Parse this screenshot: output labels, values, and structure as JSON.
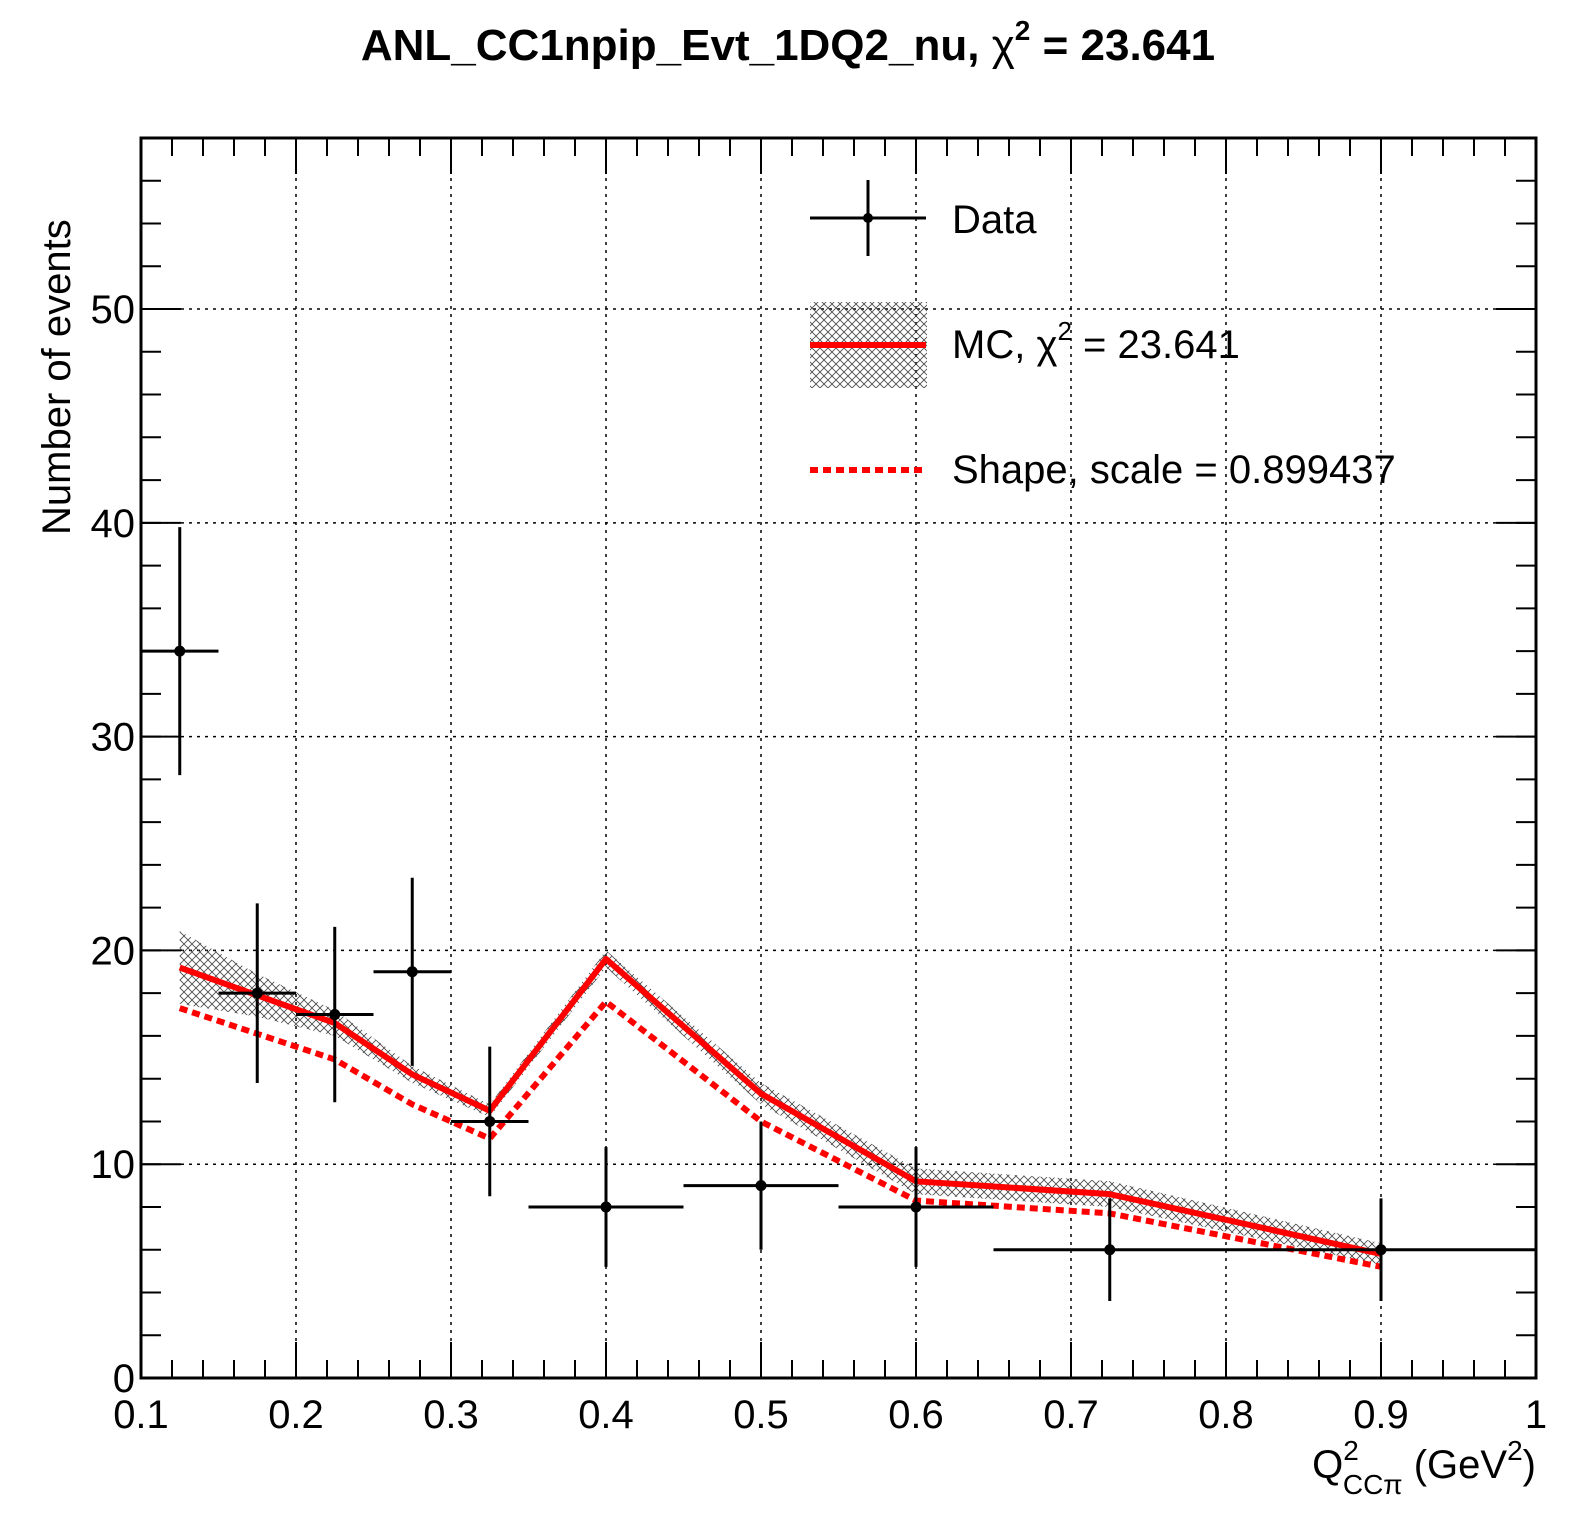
{
  "chart_data": {
    "type": "line",
    "title": {
      "main": "ANL_CC1npip_Evt_1DQ2_nu, ",
      "chi": "χ",
      "sup": "2",
      "rest": " = 23.641"
    },
    "xlabel": {
      "q": "Q",
      "sup": "2",
      "sub": "CCπ",
      "unit": " (GeV",
      "unit_sup": "2",
      "unit_close": ")"
    },
    "ylabel": "Number of events",
    "xlim": [
      0.1,
      1.0
    ],
    "ylim": [
      0,
      58
    ],
    "x_ticks": [
      "0.1",
      "0.2",
      "0.3",
      "0.4",
      "0.5",
      "0.6",
      "0.7",
      "0.8",
      "0.9",
      "1"
    ],
    "y_ticks": [
      "0",
      "10",
      "20",
      "30",
      "40",
      "50"
    ],
    "grid": true,
    "legend_position": "top-right",
    "legend": {
      "data": "Data",
      "mc_main": "MC, ",
      "mc_chi": "χ",
      "mc_sup": "2",
      "mc_rest": " = 23.641",
      "shape": "Shape, scale = 0.899437"
    },
    "series": [
      {
        "name": "Data",
        "kind": "points_with_errors",
        "x": [
          0.125,
          0.175,
          0.225,
          0.275,
          0.325,
          0.4,
          0.5,
          0.6,
          0.725,
          0.9
        ],
        "y": [
          34,
          18,
          17,
          19,
          12,
          8,
          9,
          8,
          6,
          6
        ],
        "xerr_low": [
          0.025,
          0.025,
          0.025,
          0.025,
          0.025,
          0.05,
          0.05,
          0.05,
          0.075,
          0.1
        ],
        "xerr_high": [
          0.025,
          0.025,
          0.025,
          0.025,
          0.025,
          0.05,
          0.05,
          0.05,
          0.075,
          0.1
        ],
        "yerr_low": [
          5.8,
          4.2,
          4.1,
          4.4,
          3.5,
          2.8,
          3.0,
          2.8,
          2.4,
          2.4
        ],
        "yerr_high": [
          5.8,
          4.2,
          4.1,
          4.4,
          3.5,
          2.8,
          3.0,
          2.8,
          2.4,
          2.4
        ]
      },
      {
        "name": "MC",
        "kind": "line",
        "color": "#ff0000",
        "x": [
          0.125,
          0.175,
          0.225,
          0.275,
          0.325,
          0.4,
          0.5,
          0.6,
          0.725,
          0.9
        ],
        "y": [
          19.2,
          17.9,
          16.6,
          14.2,
          12.5,
          19.6,
          13.3,
          9.2,
          8.6,
          5.8
        ],
        "band": [
          1.7,
          1.0,
          0.6,
          0.4,
          0.3,
          0.4,
          0.5,
          0.6,
          0.6,
          0.5
        ]
      },
      {
        "name": "Shape",
        "kind": "dashed_line",
        "color": "#ff0000",
        "x": [
          0.125,
          0.175,
          0.225,
          0.275,
          0.325,
          0.4,
          0.5,
          0.6,
          0.725,
          0.9
        ],
        "y": [
          17.3,
          16.1,
          14.9,
          12.8,
          11.2,
          17.6,
          12.0,
          8.3,
          7.7,
          5.2
        ]
      }
    ]
  }
}
